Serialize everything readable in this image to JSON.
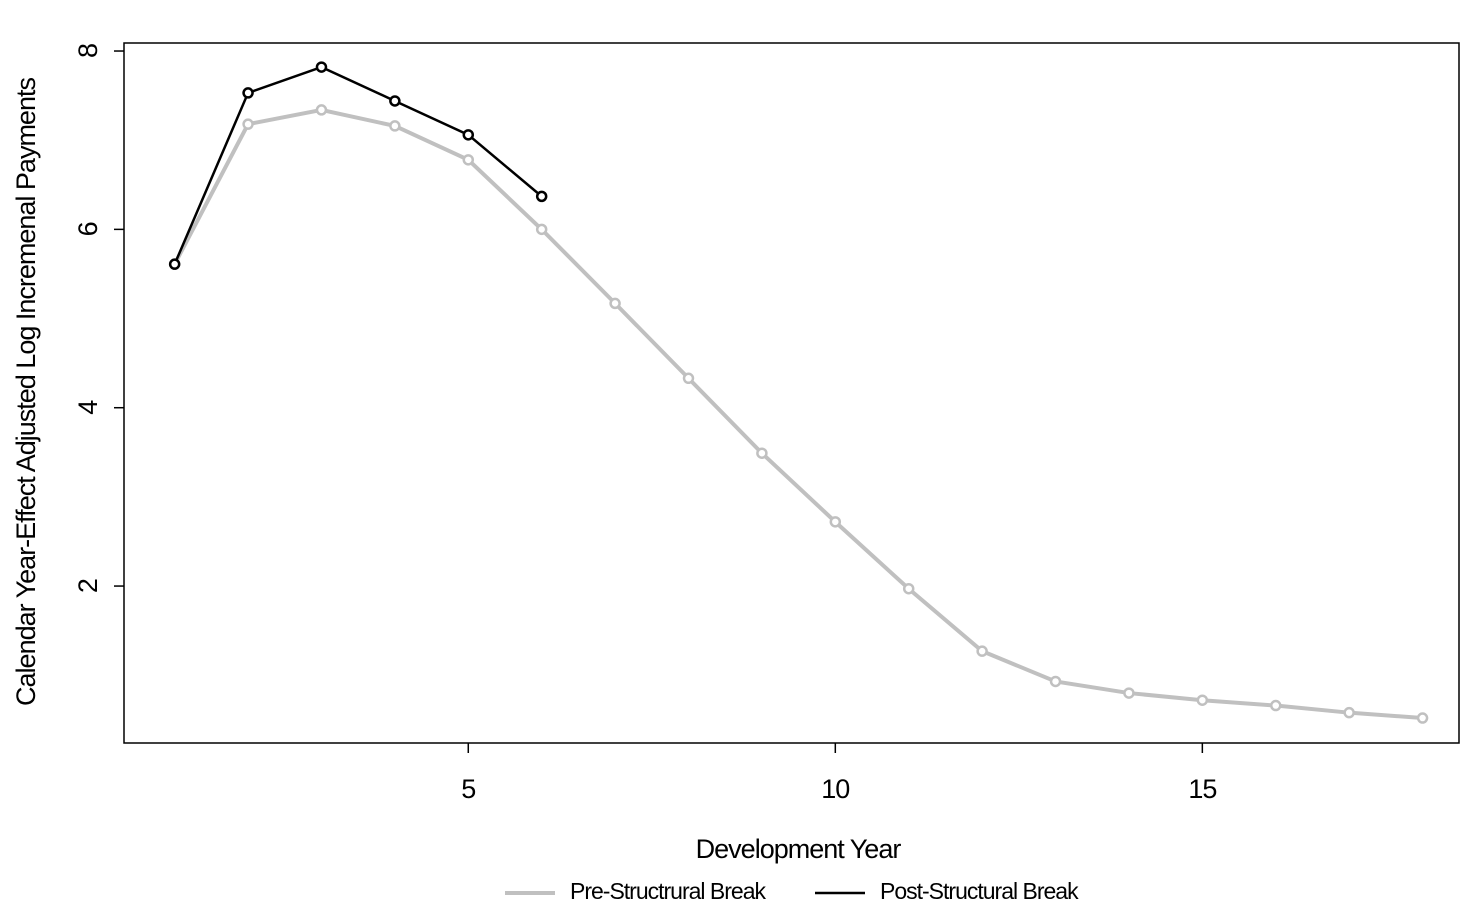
{
  "chart_data": {
    "type": "line",
    "x_label": "Development Year",
    "y_label": "Calendar Year-Effect Adjusted Log Incremenal Payments",
    "x": [
      1,
      2,
      3,
      4,
      5,
      6,
      7,
      8,
      9,
      10,
      11,
      12,
      13,
      14,
      15,
      16,
      17,
      18
    ],
    "series": [
      {
        "name": "Pre-Structrural Break",
        "color": "#c0c0c0",
        "values": [
          5.61,
          7.18,
          7.34,
          7.16,
          6.78,
          6.0,
          5.17,
          4.33,
          3.49,
          2.72,
          1.97,
          1.27,
          0.93,
          0.8,
          0.72,
          0.66,
          0.58,
          0.52
        ]
      },
      {
        "name": "Post-Structural Break",
        "color": "#000000",
        "values": [
          5.61,
          7.53,
          7.82,
          7.44,
          7.06,
          6.37,
          null,
          null,
          null,
          null,
          null,
          null,
          null,
          null,
          null,
          null,
          null,
          null
        ]
      }
    ],
    "xlim": [
      0.31,
      18.51
    ],
    "xticks": [
      5,
      10,
      15
    ],
    "ylim": [
      0.24,
      8.09
    ],
    "yticks": [
      2,
      4,
      6,
      8
    ],
    "legend": "bottom"
  }
}
